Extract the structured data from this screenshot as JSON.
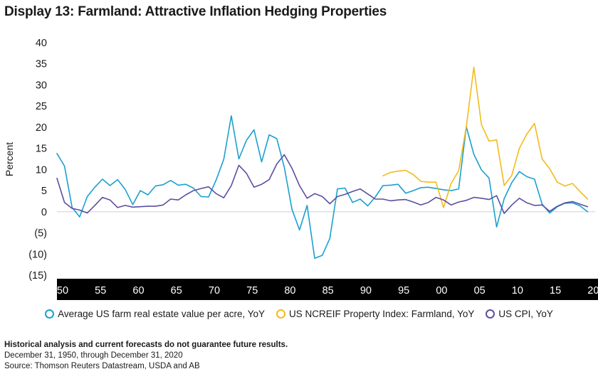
{
  "title": "Display 13: Farmland: Attractive Inflation Hedging Properties",
  "chart_data": {
    "type": "line",
    "title": "Display 13: Farmland: Attractive Inflation Hedging Properties",
    "ylabel": "Percent",
    "xlabel": "",
    "ylim": [
      -15,
      40
    ],
    "xlim": [
      1950,
      2021
    ],
    "y_ticks": [
      40,
      35,
      30,
      25,
      20,
      15,
      10,
      5,
      0,
      -5,
      -10,
      -15
    ],
    "y_tick_labels": [
      "40",
      "35",
      "30",
      "25",
      "20",
      "15",
      "10",
      "5",
      "0",
      "(5)",
      "(10)",
      "(15)"
    ],
    "x_ticks": [
      1950,
      1955,
      1960,
      1965,
      1970,
      1975,
      1980,
      1985,
      1990,
      1995,
      2000,
      2005,
      2010,
      2015,
      2020
    ],
    "x_tick_labels": [
      "50",
      "55",
      "60",
      "65",
      "70",
      "75",
      "80",
      "85",
      "90",
      "95",
      "00",
      "05",
      "10",
      "15",
      "20"
    ],
    "series": [
      {
        "name": "Average US farm real estate value per acre, YoY",
        "color": "#1aa0d0",
        "x_start": 1950,
        "values": [
          13.8,
          10.8,
          1.0,
          -1.2,
          3.6,
          5.8,
          7.7,
          6.2,
          7.6,
          5.3,
          1.7,
          5.0,
          4.0,
          6.1,
          6.4,
          7.4,
          6.3,
          6.5,
          5.6,
          3.6,
          3.5,
          7.5,
          12.4,
          22.7,
          12.5,
          16.9,
          19.4,
          11.8,
          18.2,
          17.3,
          10.5,
          0.6,
          -4.3,
          1.5,
          -11.0,
          -10.3,
          -6.3,
          5.4,
          5.6,
          2.2,
          3.0,
          1.4,
          3.5,
          6.2,
          6.3,
          6.5,
          4.4,
          5.0,
          5.7,
          5.8,
          5.5,
          5.2,
          5.0,
          5.4,
          20.1,
          13.6,
          9.9,
          8.0,
          -3.6,
          3.1,
          6.9,
          9.5,
          8.3,
          7.7,
          1.8,
          -0.3,
          1.2,
          2.0,
          2.1,
          1.4,
          0.0
        ]
      },
      {
        "name": "US NCREIF Property Index: Farmland, YoY",
        "color": "#f2bb1c",
        "x_start": 1993,
        "values": [
          8.5,
          9.3,
          9.6,
          9.8,
          8.8,
          7.2,
          7.0,
          7.0,
          1.0,
          6.7,
          9.7,
          20.1,
          34.2,
          20.6,
          16.7,
          17.0,
          6.2,
          8.6,
          15.0,
          18.4,
          20.9,
          12.5,
          10.2,
          7.0,
          6.1,
          6.7,
          4.8,
          3.0
        ]
      },
      {
        "name": "US CPI, YoY",
        "color": "#5b4fa0",
        "x_start": 1950,
        "values": [
          7.9,
          2.2,
          0.8,
          0.4,
          -0.3,
          1.5,
          3.4,
          2.8,
          1.0,
          1.5,
          1.1,
          1.2,
          1.3,
          1.3,
          1.6,
          3.0,
          2.8,
          4.0,
          5.0,
          5.5,
          5.9,
          4.3,
          3.3,
          6.2,
          11.0,
          9.1,
          5.8,
          6.5,
          7.6,
          11.3,
          13.5,
          10.3,
          6.2,
          3.2,
          4.3,
          3.6,
          1.9,
          3.6,
          4.1,
          4.8,
          5.4,
          4.2,
          3.0,
          3.0,
          2.6,
          2.8,
          2.9,
          2.3,
          1.6,
          2.2,
          3.4,
          2.8,
          1.6,
          2.3,
          2.7,
          3.4,
          3.2,
          2.9,
          3.8,
          -0.4,
          1.6,
          3.2,
          2.1,
          1.5,
          1.6,
          0.1,
          1.3,
          2.1,
          2.4,
          1.8,
          1.2
        ]
      }
    ]
  },
  "legend_position": "bottom",
  "notes": {
    "disclaimer": "Historical analysis and current forecasts do not guarantee future results.",
    "period": "December 31, 1950, through December 31, 2020",
    "source": "Source: Thomson Reuters Datastream, USDA and AB"
  }
}
